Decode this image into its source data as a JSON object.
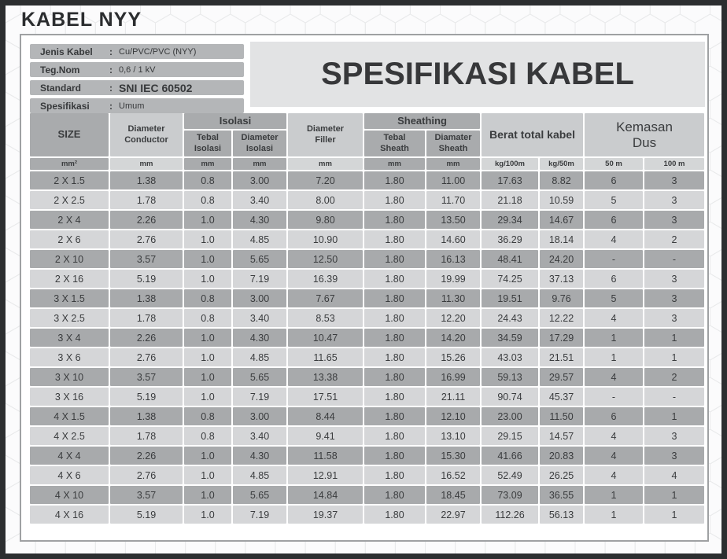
{
  "page_title": "KABEL NYY",
  "info": {
    "rows": [
      {
        "label": "Jenis Kabel",
        "sep": ":",
        "value": "Cu/PVC/PVC (NYY)"
      },
      {
        "label": "Teg.Nom",
        "sep": ":",
        "value": "0,6 / 1 kV"
      },
      {
        "label": "Standard",
        "sep": ":",
        "value": "SNI IEC 60502"
      },
      {
        "label": "Spesifikasi",
        "sep": ":",
        "value": "Umum"
      }
    ]
  },
  "spec_title": "SPESIFIKASI KABEL",
  "table": {
    "headers": {
      "size": "SIZE",
      "diameter_conductor": "Diameter\nConductor",
      "isolasi_group": "Isolasi",
      "tebal_isolasi": "Tebal\nIsolasi",
      "diameter_isolasi": "Diameter\nIsolasi",
      "diameter_filler": "Diameter\nFiller",
      "sheathing_group": "Sheathing",
      "tebal_sheath": "Tebal\nSheath",
      "diamater_sheath": "Diamater\nSheath",
      "berat_total_kabel": "Berat total kabel",
      "kemasan_dus": "Kemasan\nDus"
    },
    "col_keys": [
      "size",
      "diameter-conductor",
      "tebal-isolasi",
      "diameter-isolasi",
      "diameter-filler",
      "tebal-sheath",
      "diamater-sheath",
      "berat-kg-100m",
      "berat-kg-50m",
      "kemasan-50m",
      "kemasan-100m"
    ],
    "units": [
      "mm²",
      "mm",
      "mm",
      "mm",
      "mm",
      "mm",
      "mm",
      "kg/100m",
      "kg/50m",
      "50 m",
      "100 m"
    ],
    "rows": [
      [
        "2 X 1.5",
        "1.38",
        "0.8",
        "3.00",
        "7.20",
        "1.80",
        "11.00",
        "17.63",
        "8.82",
        "6",
        "3"
      ],
      [
        "2 X 2.5",
        "1.78",
        "0.8",
        "3.40",
        "8.00",
        "1.80",
        "11.70",
        "21.18",
        "10.59",
        "5",
        "3"
      ],
      [
        "2 X 4",
        "2.26",
        "1.0",
        "4.30",
        "9.80",
        "1.80",
        "13.50",
        "29.34",
        "14.67",
        "6",
        "3"
      ],
      [
        "2 X 6",
        "2.76",
        "1.0",
        "4.85",
        "10.90",
        "1.80",
        "14.60",
        "36.29",
        "18.14",
        "4",
        "2"
      ],
      [
        "2 X 10",
        "3.57",
        "1.0",
        "5.65",
        "12.50",
        "1.80",
        "16.13",
        "48.41",
        "24.20",
        "-",
        "-"
      ],
      [
        "2 X 16",
        "5.19",
        "1.0",
        "7.19",
        "16.39",
        "1.80",
        "19.99",
        "74.25",
        "37.13",
        "6",
        "3"
      ],
      [
        "3 X 1.5",
        "1.38",
        "0.8",
        "3.00",
        "7.67",
        "1.80",
        "11.30",
        "19.51",
        "9.76",
        "5",
        "3"
      ],
      [
        "3 X 2.5",
        "1.78",
        "0.8",
        "3.40",
        "8.53",
        "1.80",
        "12.20",
        "24.43",
        "12.22",
        "4",
        "3"
      ],
      [
        "3 X 4",
        "2.26",
        "1.0",
        "4.30",
        "10.47",
        "1.80",
        "14.20",
        "34.59",
        "17.29",
        "1",
        "1"
      ],
      [
        "3 X 6",
        "2.76",
        "1.0",
        "4.85",
        "11.65",
        "1.80",
        "15.26",
        "43.03",
        "21.51",
        "1",
        "1"
      ],
      [
        "3 X 10",
        "3.57",
        "1.0",
        "5.65",
        "13.38",
        "1.80",
        "16.99",
        "59.13",
        "29.57",
        "4",
        "2"
      ],
      [
        "3 X 16",
        "5.19",
        "1.0",
        "7.19",
        "17.51",
        "1.80",
        "21.11",
        "90.74",
        "45.37",
        "-",
        "-"
      ],
      [
        "4 X 1.5",
        "1.38",
        "0.8",
        "3.00",
        "8.44",
        "1.80",
        "12.10",
        "23.00",
        "11.50",
        "6",
        "1"
      ],
      [
        "4 X 2.5",
        "1.78",
        "0.8",
        "3.40",
        "9.41",
        "1.80",
        "13.10",
        "29.15",
        "14.57",
        "4",
        "3"
      ],
      [
        "4 X 4",
        "2.26",
        "1.0",
        "4.30",
        "11.58",
        "1.80",
        "15.30",
        "41.66",
        "20.83",
        "4",
        "3"
      ],
      [
        "4 X 6",
        "2.76",
        "1.0",
        "4.85",
        "12.91",
        "1.80",
        "16.52",
        "52.49",
        "26.25",
        "4",
        "4"
      ],
      [
        "4 X 10",
        "3.57",
        "1.0",
        "5.65",
        "14.84",
        "1.80",
        "18.45",
        "73.09",
        "36.55",
        "1",
        "1"
      ],
      [
        "4 X 16",
        "5.19",
        "1.0",
        "7.19",
        "19.37",
        "1.80",
        "22.97",
        "112.26",
        "56.13",
        "1",
        "1"
      ]
    ]
  },
  "colors": {
    "frame": "#2c2e30",
    "info_bar": "#b4b6b8",
    "spec_title_bg": "#e2e3e4",
    "header_dark": "#a9abad",
    "header_light": "#caccce",
    "row_dark": "#a8aaac",
    "row_light": "#d5d6d8"
  }
}
